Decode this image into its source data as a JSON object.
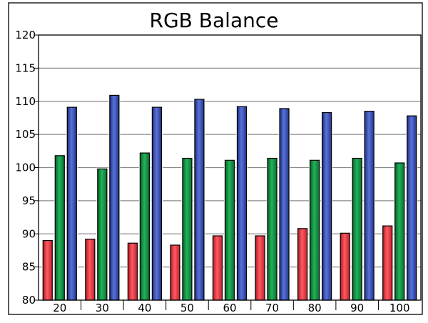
{
  "chart_data": {
    "type": "bar",
    "title": "RGB Balance",
    "xlabel": "",
    "ylabel": "",
    "ylim": [
      80,
      120
    ],
    "yticks": [
      80,
      85,
      90,
      95,
      100,
      105,
      110,
      115,
      120
    ],
    "grid": true,
    "legend": "none",
    "categories": [
      "20",
      "30",
      "40",
      "50",
      "60",
      "70",
      "80",
      "90",
      "100"
    ],
    "series": [
      {
        "color": "#e8323c",
        "values": [
          89.0,
          89.2,
          88.6,
          88.3,
          89.7,
          89.7,
          90.8,
          90.1,
          91.2
        ]
      },
      {
        "color": "#0b8a3c",
        "values": [
          101.8,
          99.8,
          102.2,
          101.4,
          101.1,
          101.4,
          101.1,
          101.4,
          100.7
        ]
      },
      {
        "color": "#3048a8",
        "values": [
          109.1,
          110.9,
          109.1,
          110.3,
          109.2,
          108.9,
          108.3,
          108.5,
          107.8
        ]
      }
    ]
  }
}
